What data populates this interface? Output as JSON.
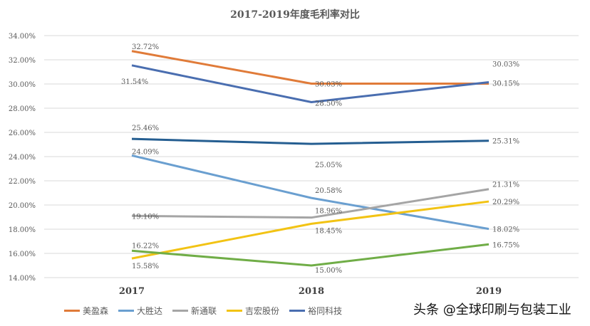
{
  "chart_data": {
    "type": "line",
    "title": "2017-2019年度毛利率对比",
    "categories": [
      "2017",
      "2018",
      "2019"
    ],
    "ylim": [
      14,
      34
    ],
    "yticks": [
      "14.00%",
      "16.00%",
      "18.00%",
      "20.00%",
      "22.00%",
      "24.00%",
      "26.00%",
      "28.00%",
      "30.00%",
      "32.00%",
      "34.00%"
    ],
    "grid": true,
    "legend": "bottom",
    "series": [
      {
        "name": "美盈森",
        "color": "#e07b39",
        "values": [
          32.72,
          30.03,
          30.03
        ],
        "labels": [
          "32.72%",
          "30.03%",
          "30.03%"
        ]
      },
      {
        "name": "大胜达",
        "color": "#6a9fd0",
        "values": [
          24.09,
          20.58,
          18.02
        ],
        "labels": [
          "24.09%",
          "20.58%",
          "18.02%"
        ]
      },
      {
        "name": "新通联",
        "color": "#a5a5a5",
        "values": [
          19.1,
          18.96,
          21.31
        ],
        "labels": [
          "19.10%",
          "18.96%",
          "21.31%"
        ]
      },
      {
        "name": "吉宏股份",
        "color": "#f2c314",
        "values": [
          15.58,
          18.45,
          20.29
        ],
        "labels": [
          "15.58%",
          "18.45%",
          "20.29%"
        ]
      },
      {
        "name": "裕同科技",
        "color": "#4a6eb0",
        "values": [
          31.54,
          28.5,
          30.15
        ],
        "labels": [
          "31.54%",
          "28.50%",
          "30.15%"
        ]
      },
      {
        "color": "#255e91",
        "values": [
          25.46,
          25.05,
          25.31
        ],
        "labels": [
          "25.46%",
          "25.05%",
          "25.31%"
        ]
      },
      {
        "color": "#70ad47",
        "values": [
          16.22,
          15.0,
          16.75
        ],
        "labels": [
          "16.22%",
          "15.00%",
          "16.75%"
        ]
      }
    ]
  },
  "watermark": "头条 @全球印刷与包装工业"
}
